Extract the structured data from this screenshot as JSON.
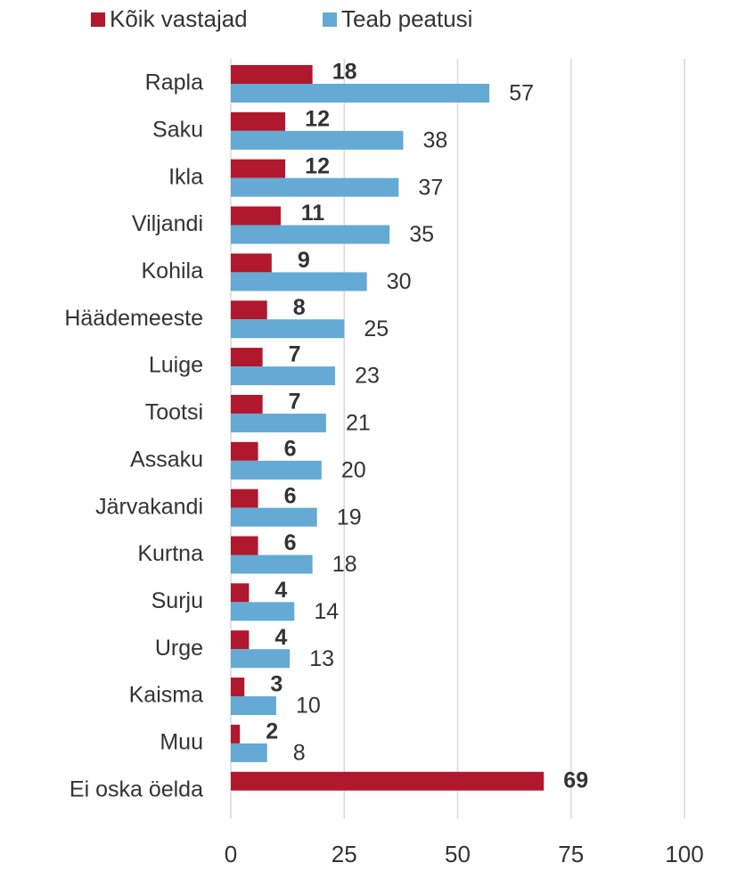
{
  "chart_data": {
    "type": "hbar",
    "categories": [
      "Rapla",
      "Saku",
      "Ikla",
      "Viljandi",
      "Kohila",
      "Häädemeeste",
      "Luige",
      "Tootsi",
      "Assaku",
      "Järvakandi",
      "Kurtna",
      "Surju",
      "Urge",
      "Kaisma",
      "Muu",
      "Ei oska öelda"
    ],
    "series": [
      {
        "name": "Kõik vastajad",
        "color": "#b0182e",
        "values": [
          18,
          12,
          12,
          11,
          9,
          8,
          7,
          7,
          6,
          6,
          6,
          4,
          4,
          3,
          2,
          69
        ]
      },
      {
        "name": "Teab peatusi",
        "color": "#64aad4",
        "values": [
          57,
          38,
          37,
          35,
          30,
          25,
          23,
          21,
          20,
          19,
          18,
          14,
          13,
          10,
          8,
          null
        ]
      }
    ],
    "xlim": [
      0,
      100
    ],
    "xticks": [
      0,
      25,
      50,
      75,
      100
    ],
    "grid": true,
    "legend": "top"
  }
}
